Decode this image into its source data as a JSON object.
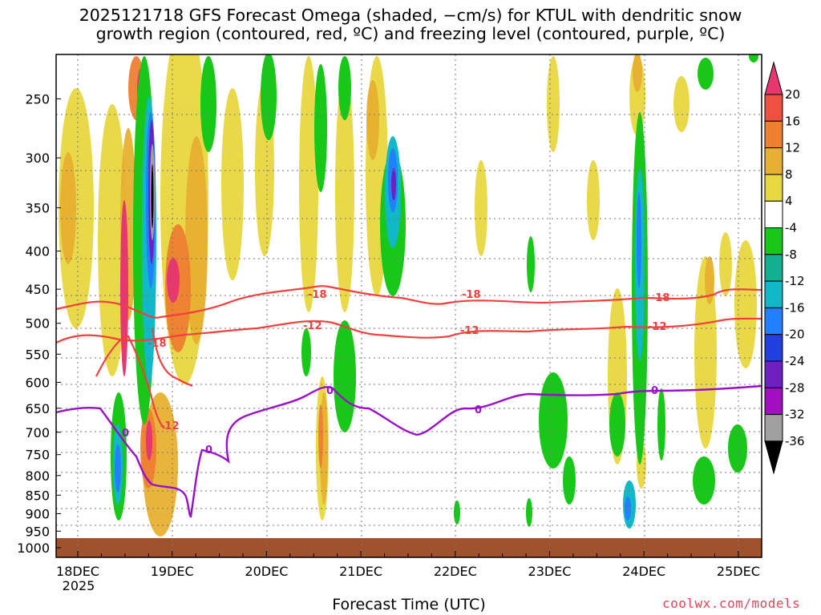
{
  "title_line1": "2025121718 GFS Forecast Omega (shaded, −cm/s) for KTUL with dendritic snow",
  "title_line2": "growth region (contoured, red, ºC) and freezing level (contoured, purple, ºC)",
  "credit": "coolwx.com/models",
  "chart_data": {
    "type": "heatmap",
    "title": "2025121718 GFS Forecast Omega (shaded, −cm/s) for KTUL with dendritic snow growth region (contoured, red, ºC) and freezing level (contoured, purple, ºC)",
    "xlabel": "Forecast Time (UTC)",
    "ylabel": "",
    "x_ticks": [
      "18DEC",
      "19DEC",
      "20DEC",
      "21DEC",
      "22DEC",
      "23DEC",
      "24DEC",
      "25DEC"
    ],
    "x_tick_sublabel": "2025",
    "y_ticks": [
      250,
      300,
      350,
      400,
      450,
      500,
      550,
      600,
      650,
      700,
      750,
      800,
      850,
      900,
      950,
      1000
    ],
    "y_axis": "pressure (hPa), log scale, reversed",
    "grid": "dotted",
    "colorbar": {
      "ticks": [
        20,
        16,
        12,
        8,
        4,
        -4,
        -8,
        -12,
        -16,
        -20,
        -24,
        -28,
        -32,
        -36
      ],
      "colors": [
        "#e8366e",
        "#f05040",
        "#ee8030",
        "#e8b030",
        "#e8d840",
        "#ffffff",
        "#18c818",
        "#10b090",
        "#10b8c8",
        "#2080ff",
        "#2040e0",
        "#7020c0",
        "#a010c0",
        "#a0a0a0",
        "#000000"
      ]
    },
    "contours": {
      "dendritic_red": [
        {
          "label": "-18",
          "approx_pressure_hPa": 455
        },
        {
          "label": "-12",
          "approx_pressure_hPa": 505
        }
      ],
      "freezing_purple": {
        "label": "0",
        "approx_pressure_hPa_range": [
          600,
          920
        ]
      }
    },
    "ground": {
      "color": "#a0522d",
      "pressure_hPa": 975
    }
  }
}
